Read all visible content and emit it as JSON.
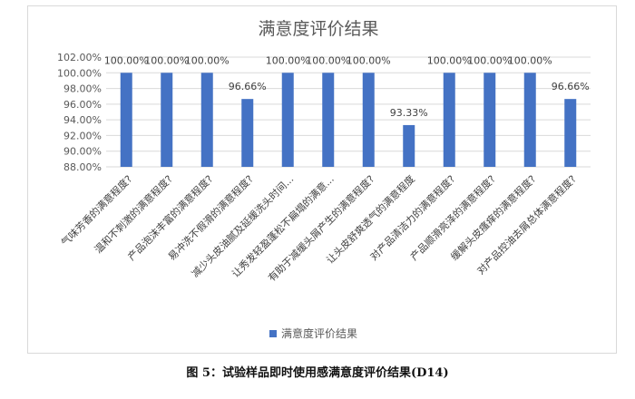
{
  "caption": "图 5：试验样品即时使用感满意度评价结果(D14)",
  "chart_data": {
    "type": "bar",
    "title": "满意度评价结果",
    "categories": [
      "气味芳香的满意程度?",
      "温和不刺激的满意程度?",
      "产品泡沫丰富的满意程度?",
      "易冲洗不假滑的满意程度?",
      "减少头皮油腻及延缓洗头时间...",
      "让秀发轻盈蓬松不扁塌的满意...",
      "有助于减缓头屑产生的满意程度?",
      "让头皮舒爽透气的满意程度",
      "对产品清洁力的满意程度?",
      "产品顺滑亮泽的满意程度?",
      "缓解头皮瘙痒的满意程度?",
      "对产品控油去屑总体满意程度?"
    ],
    "series": [
      {
        "name": "满意度评价结果",
        "values": [
          100.0,
          100.0,
          100.0,
          96.66,
          100.0,
          100.0,
          100.0,
          93.33,
          100.0,
          100.0,
          100.0,
          96.66
        ],
        "labels": [
          "100.00%",
          "100.00%",
          "100.00%",
          "96.66%",
          "100.00%",
          "100.00%",
          "100.00%",
          "93.33%",
          "100.00%",
          "100.00%",
          "100.00%",
          "96.66%"
        ]
      }
    ],
    "ylim": [
      88,
      102
    ],
    "yticks": [
      88,
      90,
      92,
      94,
      96,
      98,
      100,
      102
    ],
    "ytick_labels": [
      "88.00%",
      "90.00%",
      "92.00%",
      "94.00%",
      "96.00%",
      "98.00%",
      "100.00%",
      "102.00%"
    ],
    "grid": true,
    "legend_position": "bottom",
    "bar_color": "#4472c4"
  }
}
